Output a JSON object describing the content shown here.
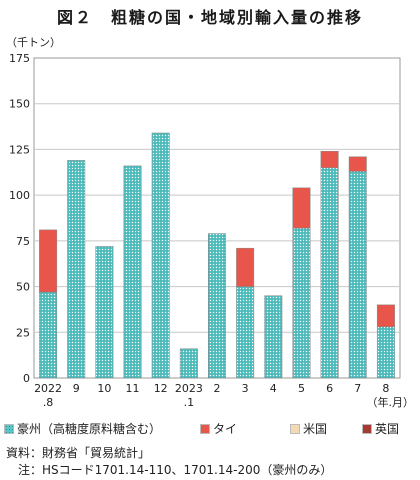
{
  "title": "図２　粗糖の国・地域別輸入量の推移",
  "unit_label": "（千トン）",
  "chart_data": {
    "type": "bar",
    "stacked": true,
    "categories": [
      "2022.8",
      "9",
      "10",
      "11",
      "12",
      "2023.1",
      "2",
      "3",
      "4",
      "5",
      "6",
      "7",
      "8"
    ],
    "category_labels": [
      [
        "2022",
        ".8"
      ],
      [
        "9"
      ],
      [
        "10"
      ],
      [
        "11"
      ],
      [
        "12"
      ],
      [
        "2023",
        ".1"
      ],
      [
        "2"
      ],
      [
        "3"
      ],
      [
        "4"
      ],
      [
        "5"
      ],
      [
        "6"
      ],
      [
        "7"
      ],
      [
        "8"
      ]
    ],
    "xlabel": "（年.月）",
    "ylim": [
      0,
      175
    ],
    "yticks": [
      0,
      25,
      50,
      75,
      100,
      125,
      150,
      175
    ],
    "grid": true,
    "series": [
      {
        "name": "豪州（高糖度原料糖含む）",
        "color": "#5cc6c6",
        "values": [
          47,
          119,
          72,
          116,
          134,
          16,
          79,
          50,
          45,
          82,
          115,
          113,
          28
        ]
      },
      {
        "name": "タイ",
        "color": "#e8554a",
        "values": [
          34,
          0,
          0,
          0,
          0,
          0,
          0,
          21,
          0,
          22,
          9,
          8,
          12
        ]
      },
      {
        "name": "米国",
        "color": "#f4d9b5",
        "values": [
          0,
          0,
          0,
          0,
          0,
          0,
          0,
          0,
          0,
          0,
          0,
          0,
          0
        ]
      },
      {
        "name": "英国",
        "color": "#a43a32",
        "values": [
          0,
          0,
          0,
          0,
          0,
          0,
          0,
          0,
          0,
          0,
          0,
          0,
          0
        ]
      }
    ]
  },
  "notes": {
    "source": "資料：財務省「貿易統計」",
    "note": "　注：HSコード1701.14-110、1701.14-200（豪州のみ）"
  }
}
